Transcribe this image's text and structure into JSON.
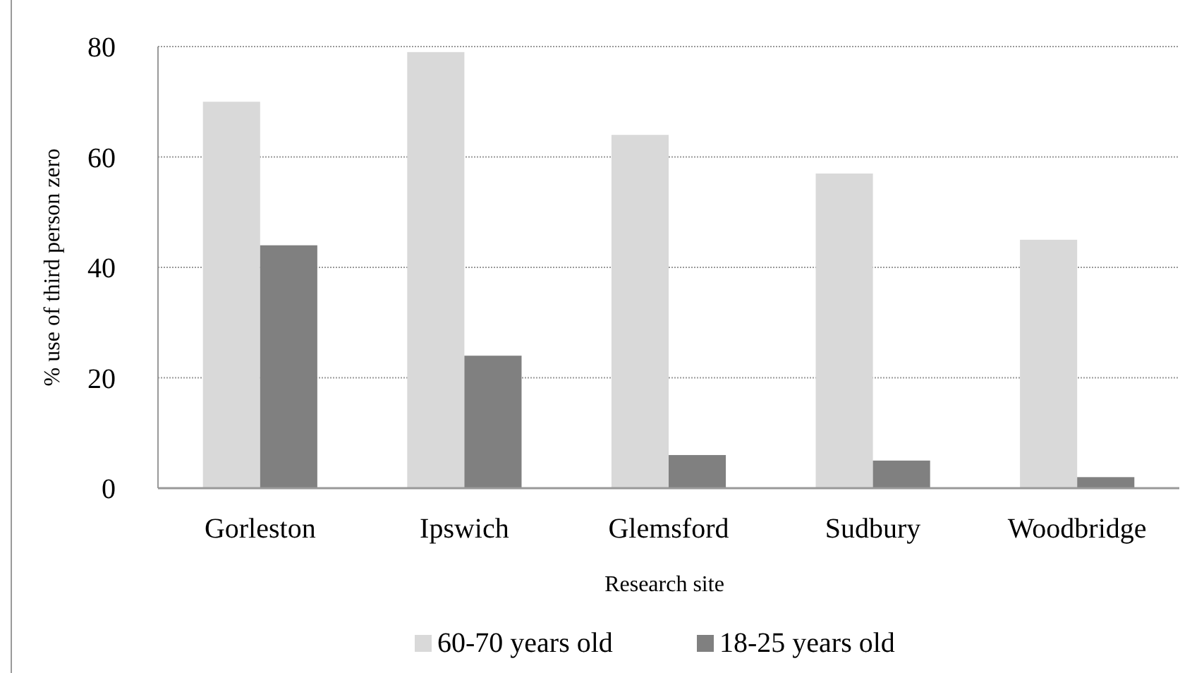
{
  "chart_data": {
    "type": "bar",
    "xlabel": "Research site",
    "ylabel": "% use of third person zero",
    "categories": [
      "Gorleston",
      "Ipswich",
      "Glemsford",
      "Sudbury",
      "Woodbridge"
    ],
    "series": [
      {
        "name": "60-70 years old",
        "color": "#d9d9d9",
        "values": [
          70,
          79,
          64,
          57,
          45
        ]
      },
      {
        "name": "18-25 years old",
        "color": "#808080",
        "values": [
          44,
          24,
          6,
          5,
          2
        ]
      }
    ],
    "ylim": [
      0,
      80
    ],
    "yticks": [
      0,
      20,
      40,
      60,
      80
    ],
    "grid": "y",
    "legend": "bottom"
  }
}
